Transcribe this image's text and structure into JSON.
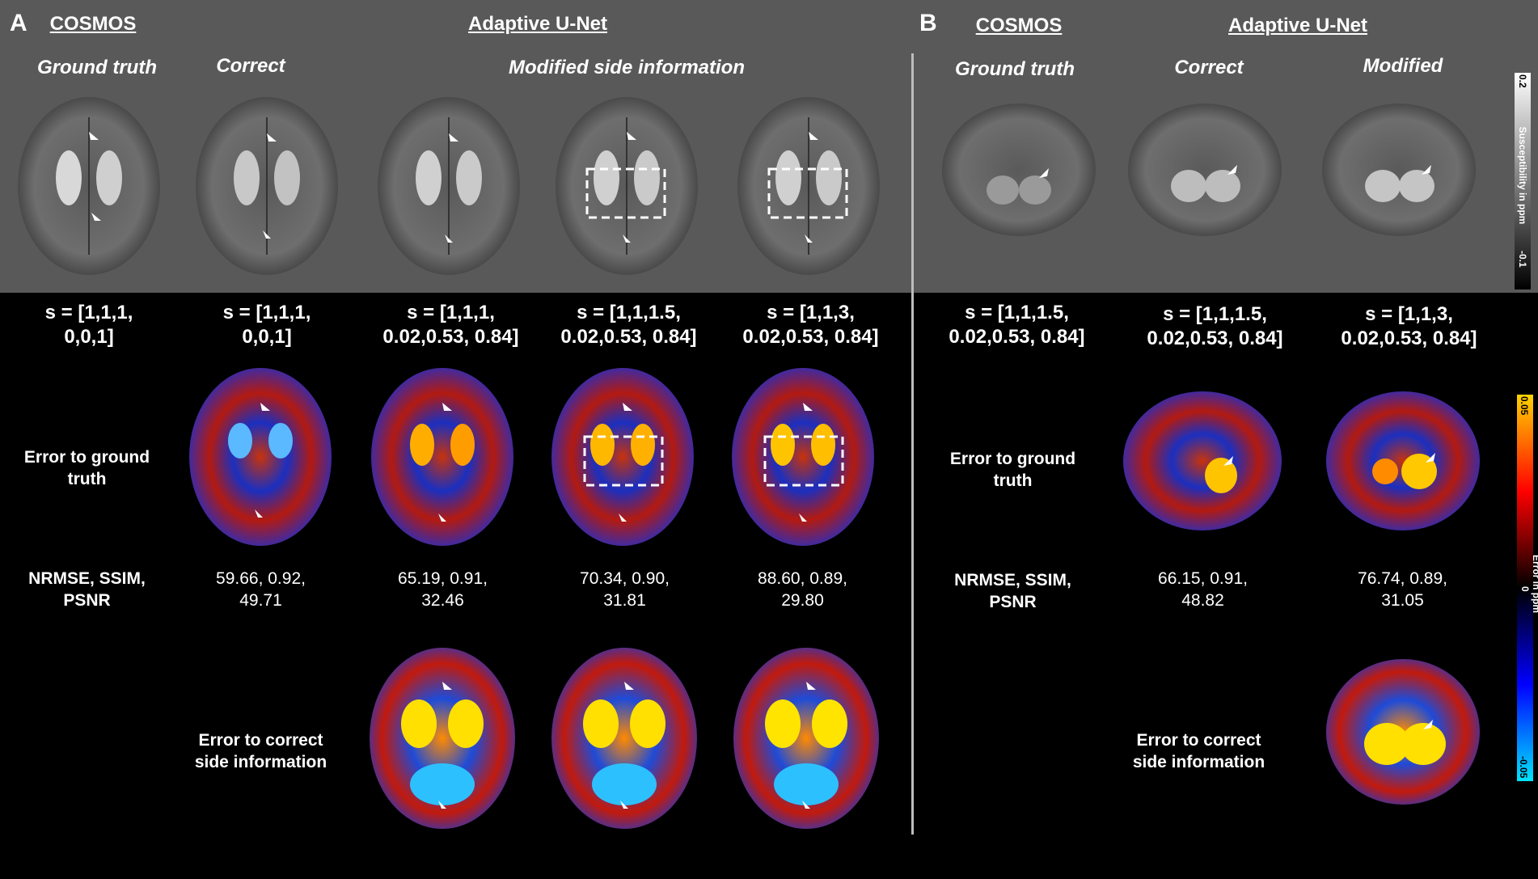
{
  "panel_a": {
    "letter": "A",
    "cosmos_header": "COSMOS",
    "unet_header": "Adaptive U-Net",
    "sub_ground_truth": "Ground truth",
    "sub_correct": "Correct",
    "sub_modified": "Modified side information",
    "s_labels": [
      "s = [1,1,1,\n0,0,1]",
      "s = [1,1,1,\n0,0,1]",
      "s = [1,1,1,\n0.02,0.53, 0.84]",
      "s = [1,1,1.5,\n0.02,0.53, 0.84]",
      "s = [1,1,3,\n0.02,0.53, 0.84]"
    ],
    "row_error_gt": "Error to ground\ntruth",
    "row_metrics": "NRMSE, SSIM,\nPSNR",
    "metrics": [
      "59.66, 0.92,\n49.71",
      "65.19, 0.91,\n32.46",
      "70.34, 0.90,\n31.81",
      "88.60, 0.89,\n29.80"
    ],
    "row_error_correct": "Error to correct\nside information"
  },
  "panel_b": {
    "letter": "B",
    "cosmos_header": "COSMOS",
    "unet_header": "Adaptive U-Net",
    "sub_ground_truth": "Ground truth",
    "sub_correct": "Correct",
    "sub_modified": "Modified",
    "s_labels": [
      "s = [1,1,1.5,\n0.02,0.53, 0.84]",
      "s = [1,1,1.5,\n0.02,0.53, 0.84]",
      "s = [1,1,3,\n0.02,0.53, 0.84]"
    ],
    "row_error_gt": "Error to ground\ntruth",
    "row_metrics": "NRMSE, SSIM,\nPSNR",
    "metrics": [
      "66.15, 0.91,\n48.82",
      "76.74, 0.89,\n31.05"
    ],
    "row_error_correct": "Error to correct\nside information"
  },
  "colorbar_gray": {
    "title": "Susceptibility in ppm",
    "max_label": "0.2",
    "min_label": "-0.1"
  },
  "colorbar_error": {
    "title": "Error in ppm",
    "max_label": "0.05",
    "mid_label": "0",
    "min_label": "-0.05",
    "colors": [
      "#ffd400",
      "#ff0000",
      "#000000",
      "#0000ff",
      "#00e5ff"
    ]
  },
  "images": {
    "gray_axial": "grayscale axial susceptibility map",
    "gray_coronal": "grayscale coronal susceptibility map",
    "error_axial": "axial error map (red-blue)",
    "error_coronal": "coronal error map (red-blue)"
  }
}
